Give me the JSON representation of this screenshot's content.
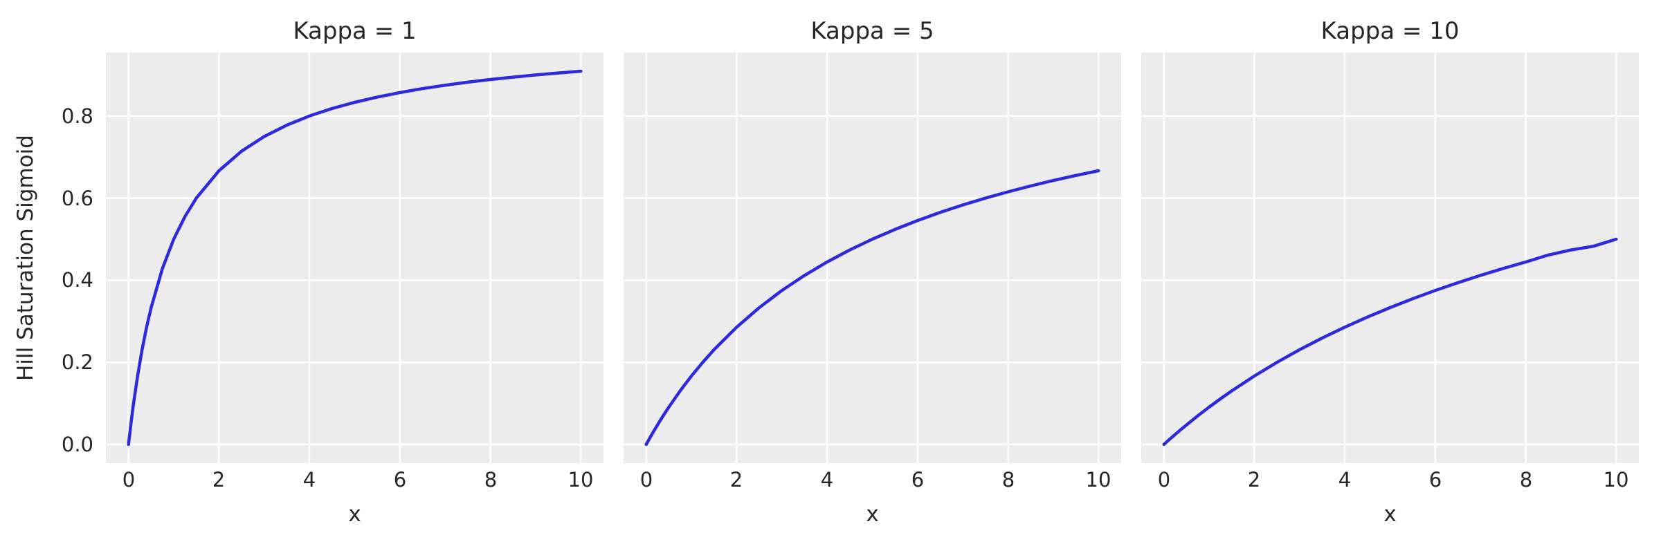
{
  "figure": {
    "ylabel": "Hill Saturation Sigmoid",
    "xlabel": "x"
  },
  "colors": {
    "figure_bg": "#ffffff",
    "axes_bg": "#ececec",
    "grid": "#ffffff",
    "text": "#262626",
    "line": "#2d2adc"
  },
  "chart_data": [
    {
      "type": "line",
      "title": "Kappa = 1",
      "xlabel": "x",
      "ylabel": "Hill Saturation Sigmoid",
      "kappa": 1,
      "x": [
        0,
        0.05,
        0.1,
        0.2,
        0.3,
        0.4,
        0.5,
        0.75,
        1,
        1.25,
        1.5,
        2,
        2.5,
        3,
        3.5,
        4,
        4.5,
        5,
        5.5,
        6,
        6.5,
        7,
        7.5,
        8,
        8.5,
        9,
        9.5,
        10
      ],
      "y": [
        0,
        0.0476,
        0.0909,
        0.1667,
        0.2308,
        0.2857,
        0.3333,
        0.4286,
        0.5,
        0.5556,
        0.6,
        0.6667,
        0.7143,
        0.75,
        0.7778,
        0.8,
        0.8182,
        0.8333,
        0.8462,
        0.8571,
        0.8667,
        0.875,
        0.8824,
        0.8889,
        0.8947,
        0.9,
        0.9048,
        0.9091
      ],
      "xticks": {
        "values": [
          0,
          2,
          4,
          6,
          8,
          10
        ],
        "labels": [
          "0",
          "2",
          "4",
          "6",
          "8",
          "10"
        ]
      },
      "yticks": {
        "values": [
          0.0,
          0.2,
          0.4,
          0.6,
          0.8
        ],
        "labels": [
          "0.0",
          "0.2",
          "0.4",
          "0.6",
          "0.8"
        ]
      },
      "xlim": [
        -0.5,
        10.5
      ],
      "ylim": [
        -0.0455,
        0.9546
      ],
      "grid": true,
      "legend": null
    },
    {
      "type": "line",
      "title": "Kappa = 5",
      "xlabel": "x",
      "kappa": 5,
      "x": [
        0,
        0.05,
        0.1,
        0.2,
        0.3,
        0.4,
        0.5,
        0.75,
        1,
        1.25,
        1.5,
        2,
        2.5,
        3,
        3.5,
        4,
        4.5,
        5,
        5.5,
        6,
        6.5,
        7,
        7.5,
        8,
        8.5,
        9,
        9.5,
        10
      ],
      "y": [
        0,
        0.0099,
        0.0196,
        0.0385,
        0.0566,
        0.0741,
        0.0909,
        0.1304,
        0.1667,
        0.2,
        0.2308,
        0.2857,
        0.3333,
        0.375,
        0.4118,
        0.4444,
        0.4737,
        0.5,
        0.5238,
        0.5455,
        0.5652,
        0.5833,
        0.6,
        0.6154,
        0.6296,
        0.6429,
        0.6552,
        0.6667
      ],
      "xticks": {
        "values": [
          0,
          2,
          4,
          6,
          8,
          10
        ],
        "labels": [
          "0",
          "2",
          "4",
          "6",
          "8",
          "10"
        ]
      },
      "yticks": {
        "values": [
          0.0,
          0.2,
          0.4,
          0.6,
          0.8
        ]
      },
      "xlim": [
        -0.5,
        10.5
      ],
      "ylim": [
        -0.0455,
        0.9546
      ],
      "grid": true,
      "legend": null
    },
    {
      "type": "line",
      "title": "Kappa = 10",
      "xlabel": "x",
      "kappa": 10,
      "x": [
        0,
        0.05,
        0.1,
        0.2,
        0.3,
        0.4,
        0.5,
        0.75,
        1,
        1.25,
        1.5,
        2,
        2.5,
        3,
        3.5,
        4,
        4.5,
        5,
        5.5,
        6,
        6.5,
        7,
        7.5,
        8,
        8.5,
        9,
        9.5,
        10
      ],
      "y": [
        0,
        0.005,
        0.0099,
        0.0196,
        0.0291,
        0.0385,
        0.0476,
        0.0698,
        0.0909,
        0.1111,
        0.1304,
        0.1667,
        0.2,
        0.2308,
        0.2593,
        0.2857,
        0.3103,
        0.3333,
        0.3548,
        0.375,
        0.3939,
        0.4118,
        0.4286,
        0.4444,
        0.4615,
        0.4737,
        0.4828,
        0.5
      ],
      "xticks": {
        "values": [
          0,
          2,
          4,
          6,
          8,
          10
        ],
        "labels": [
          "0",
          "2",
          "4",
          "6",
          "8",
          "10"
        ]
      },
      "yticks": {
        "values": [
          0.0,
          0.2,
          0.4,
          0.6,
          0.8
        ]
      },
      "xlim": [
        -0.5,
        10.5
      ],
      "ylim": [
        -0.0455,
        0.9546
      ],
      "grid": true,
      "legend": null
    }
  ]
}
